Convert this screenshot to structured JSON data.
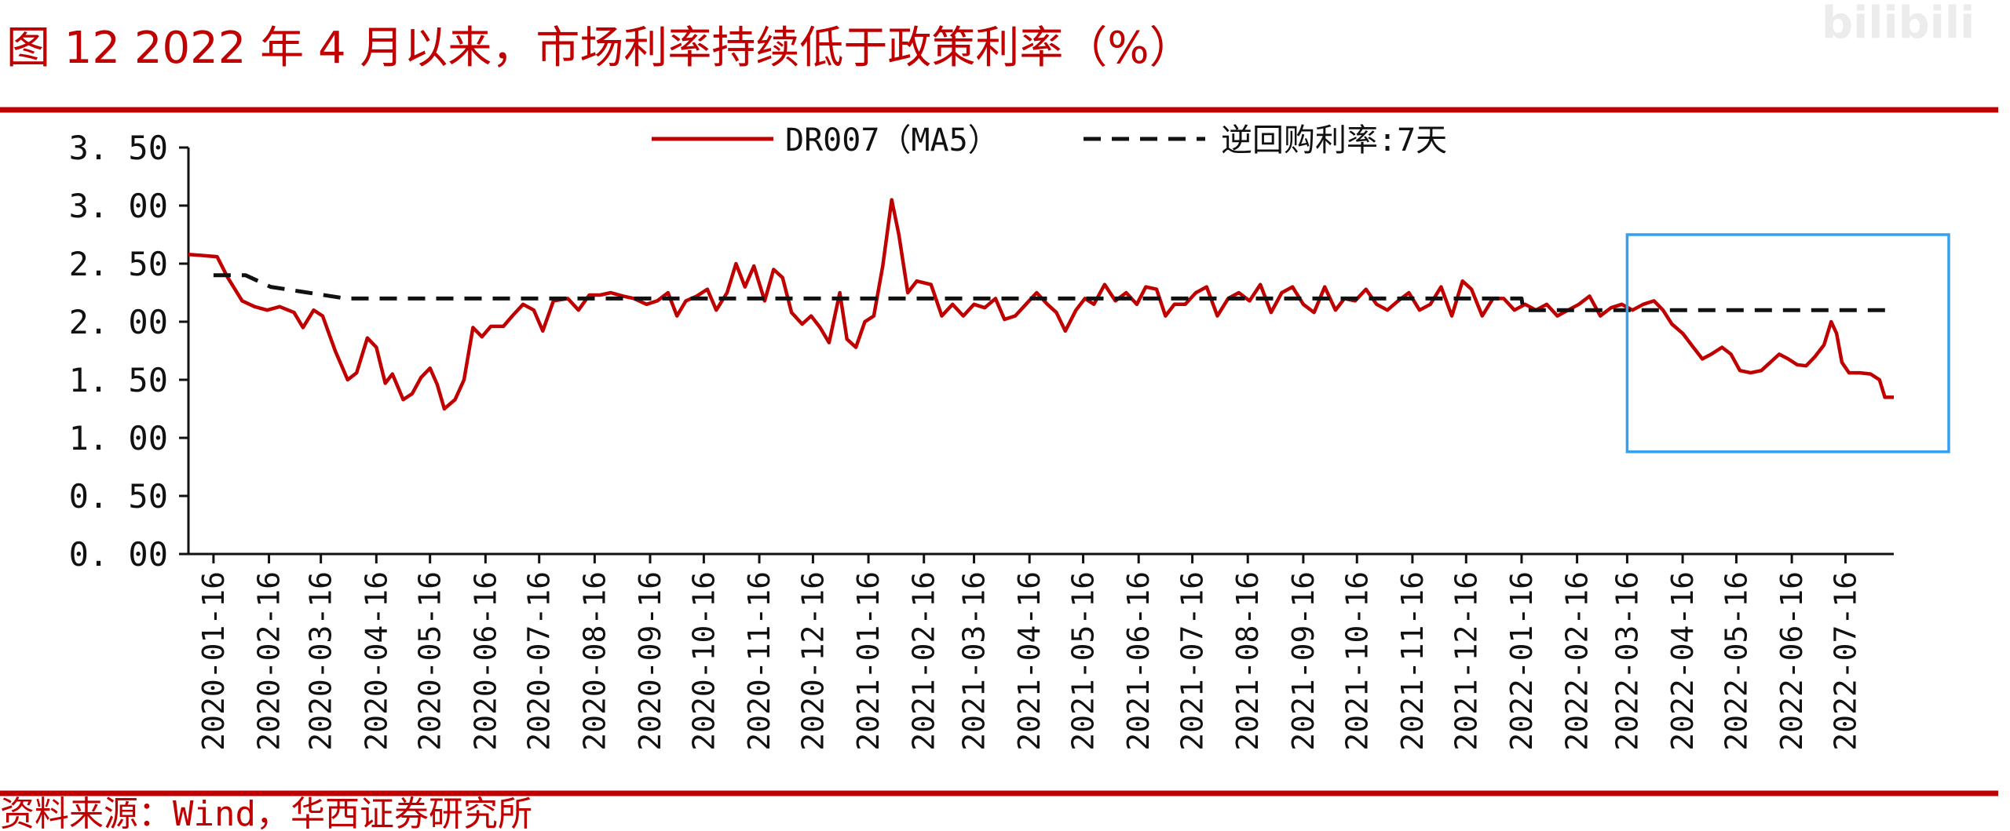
{
  "watermark": "bilibili",
  "footer": {
    "source": "资料来源：Wind，华西证券研究所"
  },
  "colors": {
    "accent": "#c00000",
    "policy_line": "#111111",
    "highlight_box": "#33a1f0"
  },
  "chart_data": {
    "type": "line",
    "title": "图 12 2022 年 4 月以来，市场利率持续低于政策利率（%）",
    "xlabel": "",
    "ylabel": "",
    "ylim": [
      0,
      3.5
    ],
    "xlim": [
      "2020-01-02",
      "2022-08-12"
    ],
    "y_ticks": [
      "0. 00",
      "0. 50",
      "1. 00",
      "1. 50",
      "2. 00",
      "2. 50",
      "3. 00",
      "3. 50"
    ],
    "x_ticks": [
      "2020-01-16",
      "2020-02-16",
      "2020-03-16",
      "2020-04-16",
      "2020-05-16",
      "2020-06-16",
      "2020-07-16",
      "2020-08-16",
      "2020-09-16",
      "2020-10-16",
      "2020-11-16",
      "2020-12-16",
      "2021-01-16",
      "2021-02-16",
      "2021-03-16",
      "2021-04-16",
      "2021-05-16",
      "2021-06-16",
      "2021-07-16",
      "2021-08-16",
      "2021-09-16",
      "2021-10-16",
      "2021-11-16",
      "2021-12-16",
      "2022-01-16",
      "2022-02-16",
      "2022-03-16",
      "2022-04-16",
      "2022-05-16",
      "2022-06-16",
      "2022-07-16"
    ],
    "grid": false,
    "legend_position": "top-center",
    "highlight_box": {
      "x_start": "2022-03-16",
      "x_end": "2022-08-12",
      "y_min": 0.88,
      "y_max": 2.75
    },
    "series": [
      {
        "name": "DR007（MA5）",
        "style": "solid",
        "color": "#c00000",
        "points": [
          [
            "2020-01-02",
            2.58
          ],
          [
            "2020-01-10",
            2.57
          ],
          [
            "2020-01-18",
            2.56
          ],
          [
            "2020-01-24",
            2.38
          ],
          [
            "2020-02-01",
            2.18
          ],
          [
            "2020-02-08",
            2.13
          ],
          [
            "2020-02-15",
            2.1
          ],
          [
            "2020-02-22",
            2.13
          ],
          [
            "2020-03-01",
            2.08
          ],
          [
            "2020-03-06",
            1.95
          ],
          [
            "2020-03-12",
            2.1
          ],
          [
            "2020-03-17",
            2.05
          ],
          [
            "2020-03-24",
            1.75
          ],
          [
            "2020-03-31",
            1.5
          ],
          [
            "2020-04-05",
            1.56
          ],
          [
            "2020-04-11",
            1.86
          ],
          [
            "2020-04-16",
            1.78
          ],
          [
            "2020-04-21",
            1.47
          ],
          [
            "2020-04-25",
            1.55
          ],
          [
            "2020-05-01",
            1.33
          ],
          [
            "2020-05-06",
            1.38
          ],
          [
            "2020-05-11",
            1.52
          ],
          [
            "2020-05-16",
            1.6
          ],
          [
            "2020-05-20",
            1.46
          ],
          [
            "2020-05-24",
            1.25
          ],
          [
            "2020-05-30",
            1.33
          ],
          [
            "2020-06-04",
            1.5
          ],
          [
            "2020-06-09",
            1.95
          ],
          [
            "2020-06-14",
            1.87
          ],
          [
            "2020-06-19",
            1.96
          ],
          [
            "2020-06-26",
            1.96
          ],
          [
            "2020-07-01",
            2.05
          ],
          [
            "2020-07-07",
            2.15
          ],
          [
            "2020-07-13",
            2.1
          ],
          [
            "2020-07-18",
            1.92
          ],
          [
            "2020-07-24",
            2.18
          ],
          [
            "2020-08-01",
            2.2
          ],
          [
            "2020-08-07",
            2.1
          ],
          [
            "2020-08-13",
            2.23
          ],
          [
            "2020-08-19",
            2.23
          ],
          [
            "2020-08-25",
            2.25
          ],
          [
            "2020-09-01",
            2.22
          ],
          [
            "2020-09-07",
            2.2
          ],
          [
            "2020-09-14",
            2.15
          ],
          [
            "2020-09-20",
            2.18
          ],
          [
            "2020-09-26",
            2.25
          ],
          [
            "2020-10-01",
            2.05
          ],
          [
            "2020-10-06",
            2.18
          ],
          [
            "2020-10-12",
            2.22
          ],
          [
            "2020-10-18",
            2.28
          ],
          [
            "2020-10-23",
            2.1
          ],
          [
            "2020-10-29",
            2.25
          ],
          [
            "2020-11-03",
            2.5
          ],
          [
            "2020-11-08",
            2.3
          ],
          [
            "2020-11-13",
            2.48
          ],
          [
            "2020-11-19",
            2.18
          ],
          [
            "2020-11-24",
            2.45
          ],
          [
            "2020-11-29",
            2.38
          ],
          [
            "2020-12-04",
            2.08
          ],
          [
            "2020-12-10",
            1.98
          ],
          [
            "2020-12-15",
            2.05
          ],
          [
            "2020-12-20",
            1.95
          ],
          [
            "2020-12-25",
            1.82
          ],
          [
            "2020-12-31",
            2.25
          ],
          [
            "2021-01-04",
            1.85
          ],
          [
            "2021-01-09",
            1.78
          ],
          [
            "2021-01-14",
            2.0
          ],
          [
            "2021-01-19",
            2.05
          ],
          [
            "2021-01-24",
            2.48
          ],
          [
            "2021-01-29",
            3.05
          ],
          [
            "2021-02-02",
            2.75
          ],
          [
            "2021-02-07",
            2.25
          ],
          [
            "2021-02-12",
            2.35
          ],
          [
            "2021-02-20",
            2.32
          ],
          [
            "2021-02-26",
            2.05
          ],
          [
            "2021-03-04",
            2.15
          ],
          [
            "2021-03-10",
            2.05
          ],
          [
            "2021-03-16",
            2.15
          ],
          [
            "2021-03-22",
            2.12
          ],
          [
            "2021-03-28",
            2.2
          ],
          [
            "2021-04-02",
            2.02
          ],
          [
            "2021-04-08",
            2.05
          ],
          [
            "2021-04-14",
            2.15
          ],
          [
            "2021-04-20",
            2.25
          ],
          [
            "2021-04-26",
            2.15
          ],
          [
            "2021-05-01",
            2.08
          ],
          [
            "2021-05-06",
            1.92
          ],
          [
            "2021-05-12",
            2.1
          ],
          [
            "2021-05-17",
            2.2
          ],
          [
            "2021-05-22",
            2.15
          ],
          [
            "2021-05-28",
            2.32
          ],
          [
            "2021-06-03",
            2.18
          ],
          [
            "2021-06-09",
            2.25
          ],
          [
            "2021-06-15",
            2.15
          ],
          [
            "2021-06-20",
            2.3
          ],
          [
            "2021-06-26",
            2.28
          ],
          [
            "2021-07-01",
            2.05
          ],
          [
            "2021-07-06",
            2.15
          ],
          [
            "2021-07-12",
            2.15
          ],
          [
            "2021-07-18",
            2.25
          ],
          [
            "2021-07-24",
            2.3
          ],
          [
            "2021-07-30",
            2.05
          ],
          [
            "2021-08-05",
            2.2
          ],
          [
            "2021-08-11",
            2.25
          ],
          [
            "2021-08-17",
            2.18
          ],
          [
            "2021-08-23",
            2.32
          ],
          [
            "2021-08-29",
            2.08
          ],
          [
            "2021-09-04",
            2.25
          ],
          [
            "2021-09-10",
            2.3
          ],
          [
            "2021-09-16",
            2.15
          ],
          [
            "2021-09-22",
            2.08
          ],
          [
            "2021-09-28",
            2.3
          ],
          [
            "2021-10-04",
            2.1
          ],
          [
            "2021-10-09",
            2.2
          ],
          [
            "2021-10-15",
            2.18
          ],
          [
            "2021-10-21",
            2.28
          ],
          [
            "2021-10-27",
            2.15
          ],
          [
            "2021-11-02",
            2.1
          ],
          [
            "2021-11-08",
            2.18
          ],
          [
            "2021-11-14",
            2.25
          ],
          [
            "2021-11-20",
            2.1
          ],
          [
            "2021-11-26",
            2.15
          ],
          [
            "2021-12-02",
            2.3
          ],
          [
            "2021-12-08",
            2.05
          ],
          [
            "2021-12-14",
            2.35
          ],
          [
            "2021-12-19",
            2.28
          ],
          [
            "2021-12-25",
            2.05
          ],
          [
            "2021-12-31",
            2.2
          ],
          [
            "2022-01-06",
            2.2
          ],
          [
            "2022-01-12",
            2.1
          ],
          [
            "2022-01-18",
            2.15
          ],
          [
            "2022-01-24",
            2.1
          ],
          [
            "2022-01-30",
            2.15
          ],
          [
            "2022-02-05",
            2.05
          ],
          [
            "2022-02-11",
            2.1
          ],
          [
            "2022-02-17",
            2.15
          ],
          [
            "2022-02-23",
            2.22
          ],
          [
            "2022-03-01",
            2.05
          ],
          [
            "2022-03-07",
            2.12
          ],
          [
            "2022-03-13",
            2.15
          ],
          [
            "2022-03-19",
            2.1
          ],
          [
            "2022-03-25",
            2.15
          ],
          [
            "2022-03-31",
            2.18
          ],
          [
            "2022-04-05",
            2.1
          ],
          [
            "2022-04-10",
            1.98
          ],
          [
            "2022-04-16",
            1.9
          ],
          [
            "2022-04-22",
            1.78
          ],
          [
            "2022-04-27",
            1.68
          ],
          [
            "2022-05-02",
            1.72
          ],
          [
            "2022-05-08",
            1.78
          ],
          [
            "2022-05-13",
            1.72
          ],
          [
            "2022-05-18",
            1.58
          ],
          [
            "2022-05-24",
            1.56
          ],
          [
            "2022-05-30",
            1.58
          ],
          [
            "2022-06-04",
            1.65
          ],
          [
            "2022-06-09",
            1.72
          ],
          [
            "2022-06-14",
            1.68
          ],
          [
            "2022-06-19",
            1.63
          ],
          [
            "2022-06-24",
            1.62
          ],
          [
            "2022-06-29",
            1.7
          ],
          [
            "2022-07-04",
            1.8
          ],
          [
            "2022-07-08",
            2.0
          ],
          [
            "2022-07-11",
            1.9
          ],
          [
            "2022-07-14",
            1.65
          ],
          [
            "2022-07-18",
            1.56
          ],
          [
            "2022-07-24",
            1.56
          ],
          [
            "2022-07-30",
            1.55
          ],
          [
            "2022-08-04",
            1.5
          ],
          [
            "2022-08-07",
            1.35
          ],
          [
            "2022-08-12",
            1.35
          ]
        ]
      },
      {
        "name": "逆回购利率:7天",
        "style": "dashed",
        "color": "#111111",
        "points": [
          [
            "2020-01-16",
            2.4
          ],
          [
            "2020-02-03",
            2.4
          ],
          [
            "2020-02-17",
            2.3
          ],
          [
            "2020-03-30",
            2.2
          ],
          [
            "2022-01-16",
            2.2
          ],
          [
            "2022-01-17",
            2.1
          ],
          [
            "2022-08-12",
            2.1
          ]
        ]
      }
    ]
  }
}
